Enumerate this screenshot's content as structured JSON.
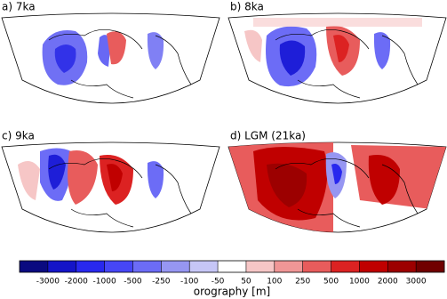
{
  "panels": [
    {
      "title": "a) 7ka"
    },
    {
      "title": "b) 8ka"
    },
    {
      "title": "c) 9ka"
    },
    {
      "title": "d) LGM (21ka)"
    }
  ],
  "colorbar": {
    "label": "orography [m]",
    "ticks": [
      -3000,
      -2000,
      -1000,
      -500,
      -250,
      -100,
      -50,
      50,
      100,
      250,
      500,
      1000,
      2000,
      3000
    ],
    "colors": [
      "#0a0a80",
      "#1414c8",
      "#2828ee",
      "#4646f6",
      "#6c6cf6",
      "#9696f2",
      "#c6c6f6",
      "#ffffff",
      "#f6c6c6",
      "#f09696",
      "#e85c5c",
      "#dc2222",
      "#c00000",
      "#9c0000",
      "#700000"
    ]
  }
}
